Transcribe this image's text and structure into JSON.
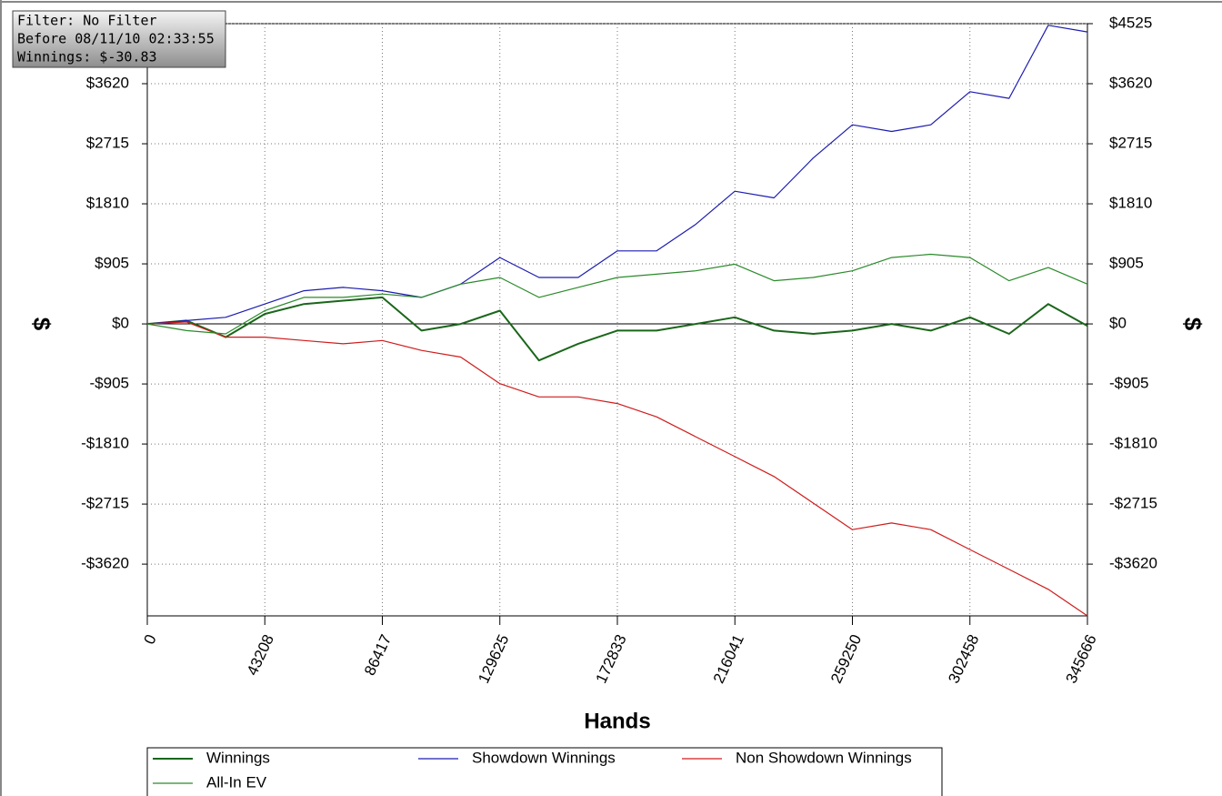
{
  "chart_data": {
    "type": "line",
    "info_box": [
      "Filter: No Filter",
      "Before 08/11/10 02:33:55",
      "Winnings: $-30.83"
    ],
    "xlabel": "Hands",
    "ylabel": "$",
    "x": [
      0,
      14403,
      28805,
      43208,
      57611,
      72014,
      86417,
      100819,
      115222,
      129625,
      144028,
      158430,
      172833,
      187236,
      201639,
      216041,
      230444,
      244847,
      259250,
      273652,
      288055,
      302458,
      316861,
      331263,
      345666
    ],
    "xlim": [
      0,
      345666
    ],
    "xticks": [
      0,
      43208,
      86417,
      129625,
      172833,
      216041,
      259250,
      302458,
      345666
    ],
    "ylim": [
      -4400,
      4525
    ],
    "yticks": [
      {
        "value": 4525,
        "label": "$4525"
      },
      {
        "value": 3620,
        "label": "$3620"
      },
      {
        "value": 2715,
        "label": "$2715"
      },
      {
        "value": 1810,
        "label": "$1810"
      },
      {
        "value": 905,
        "label": "$905"
      },
      {
        "value": 0,
        "label": "$0"
      },
      {
        "value": -905,
        "label": "-$905"
      },
      {
        "value": -1810,
        "label": "-$1810"
      },
      {
        "value": -2715,
        "label": "-$2715"
      },
      {
        "value": -3620,
        "label": "-$3620"
      }
    ],
    "grid": true,
    "legend": "bottom",
    "series": [
      {
        "name": "Winnings",
        "color": "#1a661a",
        "width": 2,
        "values": [
          0,
          50,
          -200,
          150,
          300,
          350,
          400,
          -100,
          0,
          200,
          -550,
          -300,
          -100,
          -100,
          0,
          100,
          -100,
          -150,
          -100,
          0,
          -100,
          100,
          -150,
          300,
          -30.83
        ]
      },
      {
        "name": "Showdown Winnings",
        "color": "#1c1cb0",
        "width": 1.2,
        "values": [
          0,
          50,
          100,
          300,
          500,
          550,
          500,
          400,
          600,
          1000,
          700,
          700,
          1100,
          1100,
          1500,
          2000,
          1900,
          2500,
          3000,
          2900,
          3000,
          3500,
          3400,
          4500,
          4400
        ]
      },
      {
        "name": "Non Showdown Winnings",
        "color": "#d01c1c",
        "width": 1.2,
        "values": [
          0,
          30,
          -200,
          -200,
          -250,
          -300,
          -250,
          -400,
          -500,
          -900,
          -1100,
          -1100,
          -1200,
          -1400,
          -1700,
          -2000,
          -2300,
          -2700,
          -3100,
          -3000,
          -3100,
          -3400,
          -3700,
          -4000,
          -4400
        ]
      },
      {
        "name": "All-In EV",
        "color": "#2a8a2a",
        "width": 1.2,
        "values": [
          0,
          -100,
          -150,
          200,
          400,
          400,
          450,
          400,
          600,
          700,
          400,
          550,
          700,
          750,
          800,
          900,
          650,
          700,
          800,
          1000,
          1050,
          1000,
          650,
          850,
          600
        ]
      }
    ]
  }
}
